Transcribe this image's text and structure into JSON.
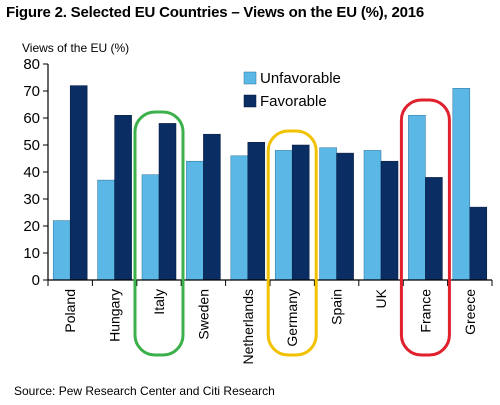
{
  "figure": {
    "title": "Figure 2. Selected EU Countries – Views on the EU (%), 2016",
    "source": "Source: Pew Research Center and Citi Research"
  },
  "colors": {
    "unfavorable": "#5bb8e6",
    "favorable": "#0a2d63",
    "highlight_green": "#3cb04a",
    "highlight_yellow": "#f2c200",
    "highlight_red": "#e0202c"
  },
  "chart_data": {
    "type": "bar",
    "title": "Figure 2. Selected EU Countries – Views on the EU (%), 2016",
    "ylabel": "Views of the EU (%)",
    "xlabel": "",
    "ylim": [
      0,
      80
    ],
    "yticks": [
      0,
      10,
      20,
      30,
      40,
      50,
      60,
      70,
      80
    ],
    "grid": false,
    "legend_position": "top-center",
    "categories": [
      "Poland",
      "Hungary",
      "Italy",
      "Sweden",
      "Netherlands",
      "Germany",
      "Spain",
      "UK",
      "France",
      "Greece"
    ],
    "series": [
      {
        "name": "Unfavorable",
        "values": [
          22,
          37,
          39,
          44,
          46,
          48,
          49,
          48,
          61,
          71
        ]
      },
      {
        "name": "Favorable",
        "values": [
          72,
          61,
          58,
          54,
          51,
          50,
          47,
          44,
          38,
          27
        ]
      }
    ],
    "highlighted_categories": [
      {
        "category": "Italy",
        "color": "green"
      },
      {
        "category": "Germany",
        "color": "yellow"
      },
      {
        "category": "France",
        "color": "red"
      }
    ]
  }
}
